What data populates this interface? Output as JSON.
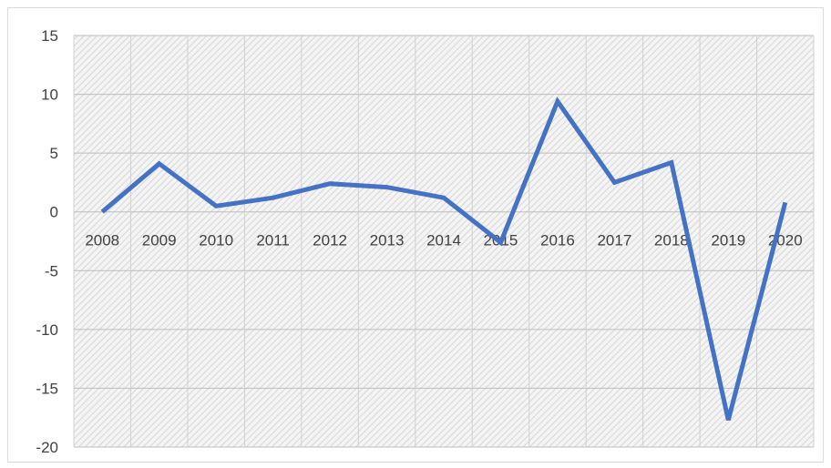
{
  "chart_data": {
    "type": "line",
    "title": "",
    "xlabel": "",
    "ylabel": "",
    "categories": [
      "2008",
      "2009",
      "2010",
      "2011",
      "2012",
      "2013",
      "2014",
      "2015",
      "2016",
      "2017",
      "2018",
      "2019",
      "2020"
    ],
    "series": [
      {
        "values": [
          0.0,
          4.1,
          0.5,
          1.2,
          2.4,
          2.1,
          1.2,
          -2.6,
          9.4,
          2.5,
          4.2,
          -17.7,
          0.8
        ],
        "color": "#4472c4"
      }
    ],
    "ylim": [
      -20,
      15
    ],
    "yticks": [
      "15",
      "10",
      "5",
      "0",
      "-5",
      "-10",
      "-15",
      "-20"
    ],
    "grid": true,
    "plot_background": "hatched light gray",
    "legend": "none"
  }
}
